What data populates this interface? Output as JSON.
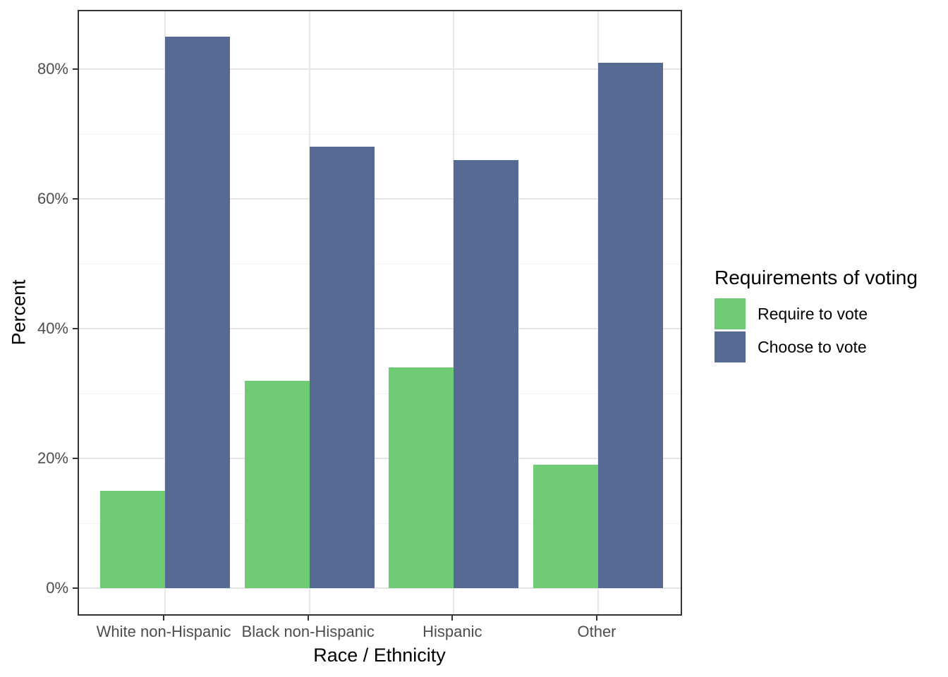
{
  "chart_data": {
    "type": "bar",
    "grouping": "dodged",
    "title": "",
    "xlabel": "Race / Ethnicity",
    "ylabel": "Percent",
    "categories": [
      "White non-Hispanic",
      "Black non-Hispanic",
      "Hispanic",
      "Other"
    ],
    "series": [
      {
        "name": "Require to vote",
        "color": "#6FCB74",
        "values": [
          15,
          32,
          34,
          19
        ]
      },
      {
        "name": "Choose to vote",
        "color": "#566A94",
        "values": [
          85,
          68,
          66,
          81
        ]
      }
    ],
    "y_axis": {
      "unit": "percent",
      "major_ticks": [
        0,
        20,
        40,
        60,
        80
      ],
      "tick_labels": [
        "0%",
        "20%",
        "40%",
        "60%",
        "80%"
      ],
      "minor_ticks": [
        10,
        30,
        50,
        70
      ],
      "ylim": [
        -4,
        89.5
      ]
    },
    "legend": {
      "title": "Requirements of voting",
      "position": "right",
      "items": [
        "Require to vote",
        "Choose to vote"
      ]
    },
    "style": {
      "panel_border_color": "#333333",
      "major_grid_color": "#e4e4e4",
      "minor_grid_color": "#f2f2f2",
      "tick_text_color": "#4d4d4d",
      "background": "#ffffff"
    }
  }
}
